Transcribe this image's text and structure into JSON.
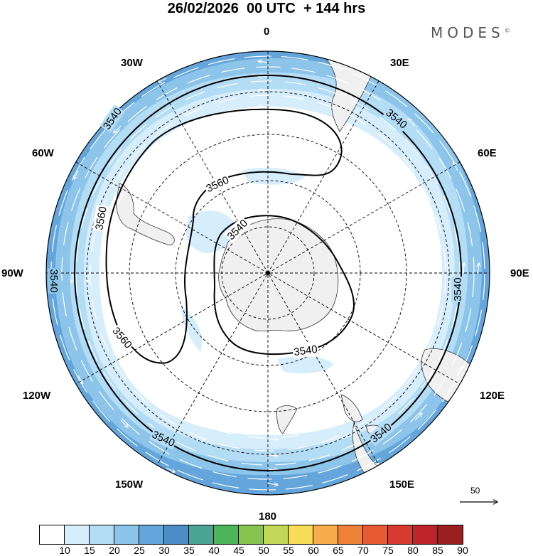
{
  "title": "26/02/2026  00 UTC  + 144 hrs",
  "brand": {
    "name": "MODES",
    "mark": "©"
  },
  "longitudes": {
    "n": "0",
    "nne": "30E",
    "ene": "60E",
    "e": "90E",
    "ese": "120E",
    "sse": "150E",
    "s": "180",
    "ssw": "150W",
    "wsw": "120W",
    "w": "90W",
    "wnw": "60W",
    "nnw": "30W"
  },
  "contours": {
    "a": "3540",
    "b": "3560"
  },
  "reference_vector": {
    "label": "50"
  },
  "colorbar": {
    "colors": [
      "#ffffff",
      "#d6eefc",
      "#b3dcf5",
      "#8cc4ea",
      "#64a6dc",
      "#4c8dc6",
      "#4ba394",
      "#4cb45a",
      "#86c44f",
      "#c1d957",
      "#f8dc55",
      "#f7ad4a",
      "#f08139",
      "#e85a31",
      "#d73a2f",
      "#be2329",
      "#99201e"
    ],
    "labels": [
      "10",
      "15",
      "20",
      "25",
      "30",
      "35",
      "40",
      "45",
      "50",
      "55",
      "60",
      "65",
      "70",
      "75",
      "80",
      "85",
      "90"
    ]
  },
  "colors": {
    "land": "#f0f0f0",
    "contour": "#000000",
    "grid": "#000000"
  }
}
